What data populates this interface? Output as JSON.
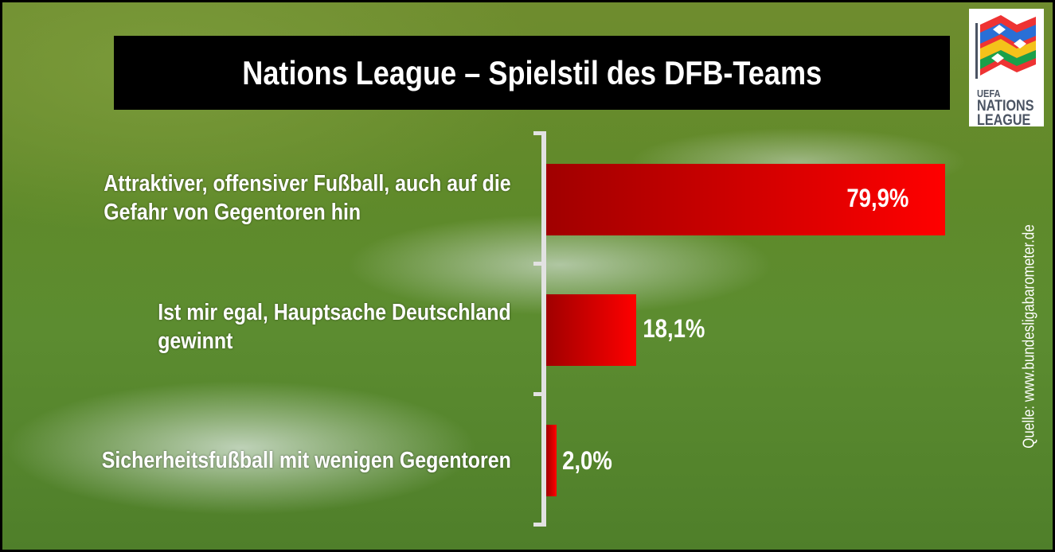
{
  "chart_data": {
    "type": "bar",
    "orientation": "horizontal",
    "title": "Nations League – Spielstil des DFB-Teams",
    "categories": [
      "Attraktiver, offensiver Fußball, auch auf die Gefahr von Gegentoren hin",
      "Ist mir egal, Hauptsache Deutschland gewinnt",
      "Sicherheitsfußball mit wenigen Gegentoren"
    ],
    "category_lines": [
      [
        "Attraktiver, offensiver Fußball, auch auf die",
        "Gefahr von Gegentoren hin"
      ],
      [
        "Ist mir egal, Hauptsache Deutschland",
        "gewinnt"
      ],
      [
        "Sicherheitsfußball mit wenigen Gegentoren"
      ]
    ],
    "values": [
      79.9,
      18.1,
      2.0
    ],
    "value_labels": [
      "79,9%",
      "18,1%",
      "2,0%"
    ],
    "unit": "%",
    "xlim": [
      0,
      100
    ],
    "grid": false,
    "bar_color": "#ff0000",
    "bar_color_dark": "#a00000"
  },
  "logo": {
    "text": [
      "UEFA",
      "NATIONS",
      "LEAGUE"
    ]
  },
  "source": "Quelle: www.bundesligabarometer.de"
}
